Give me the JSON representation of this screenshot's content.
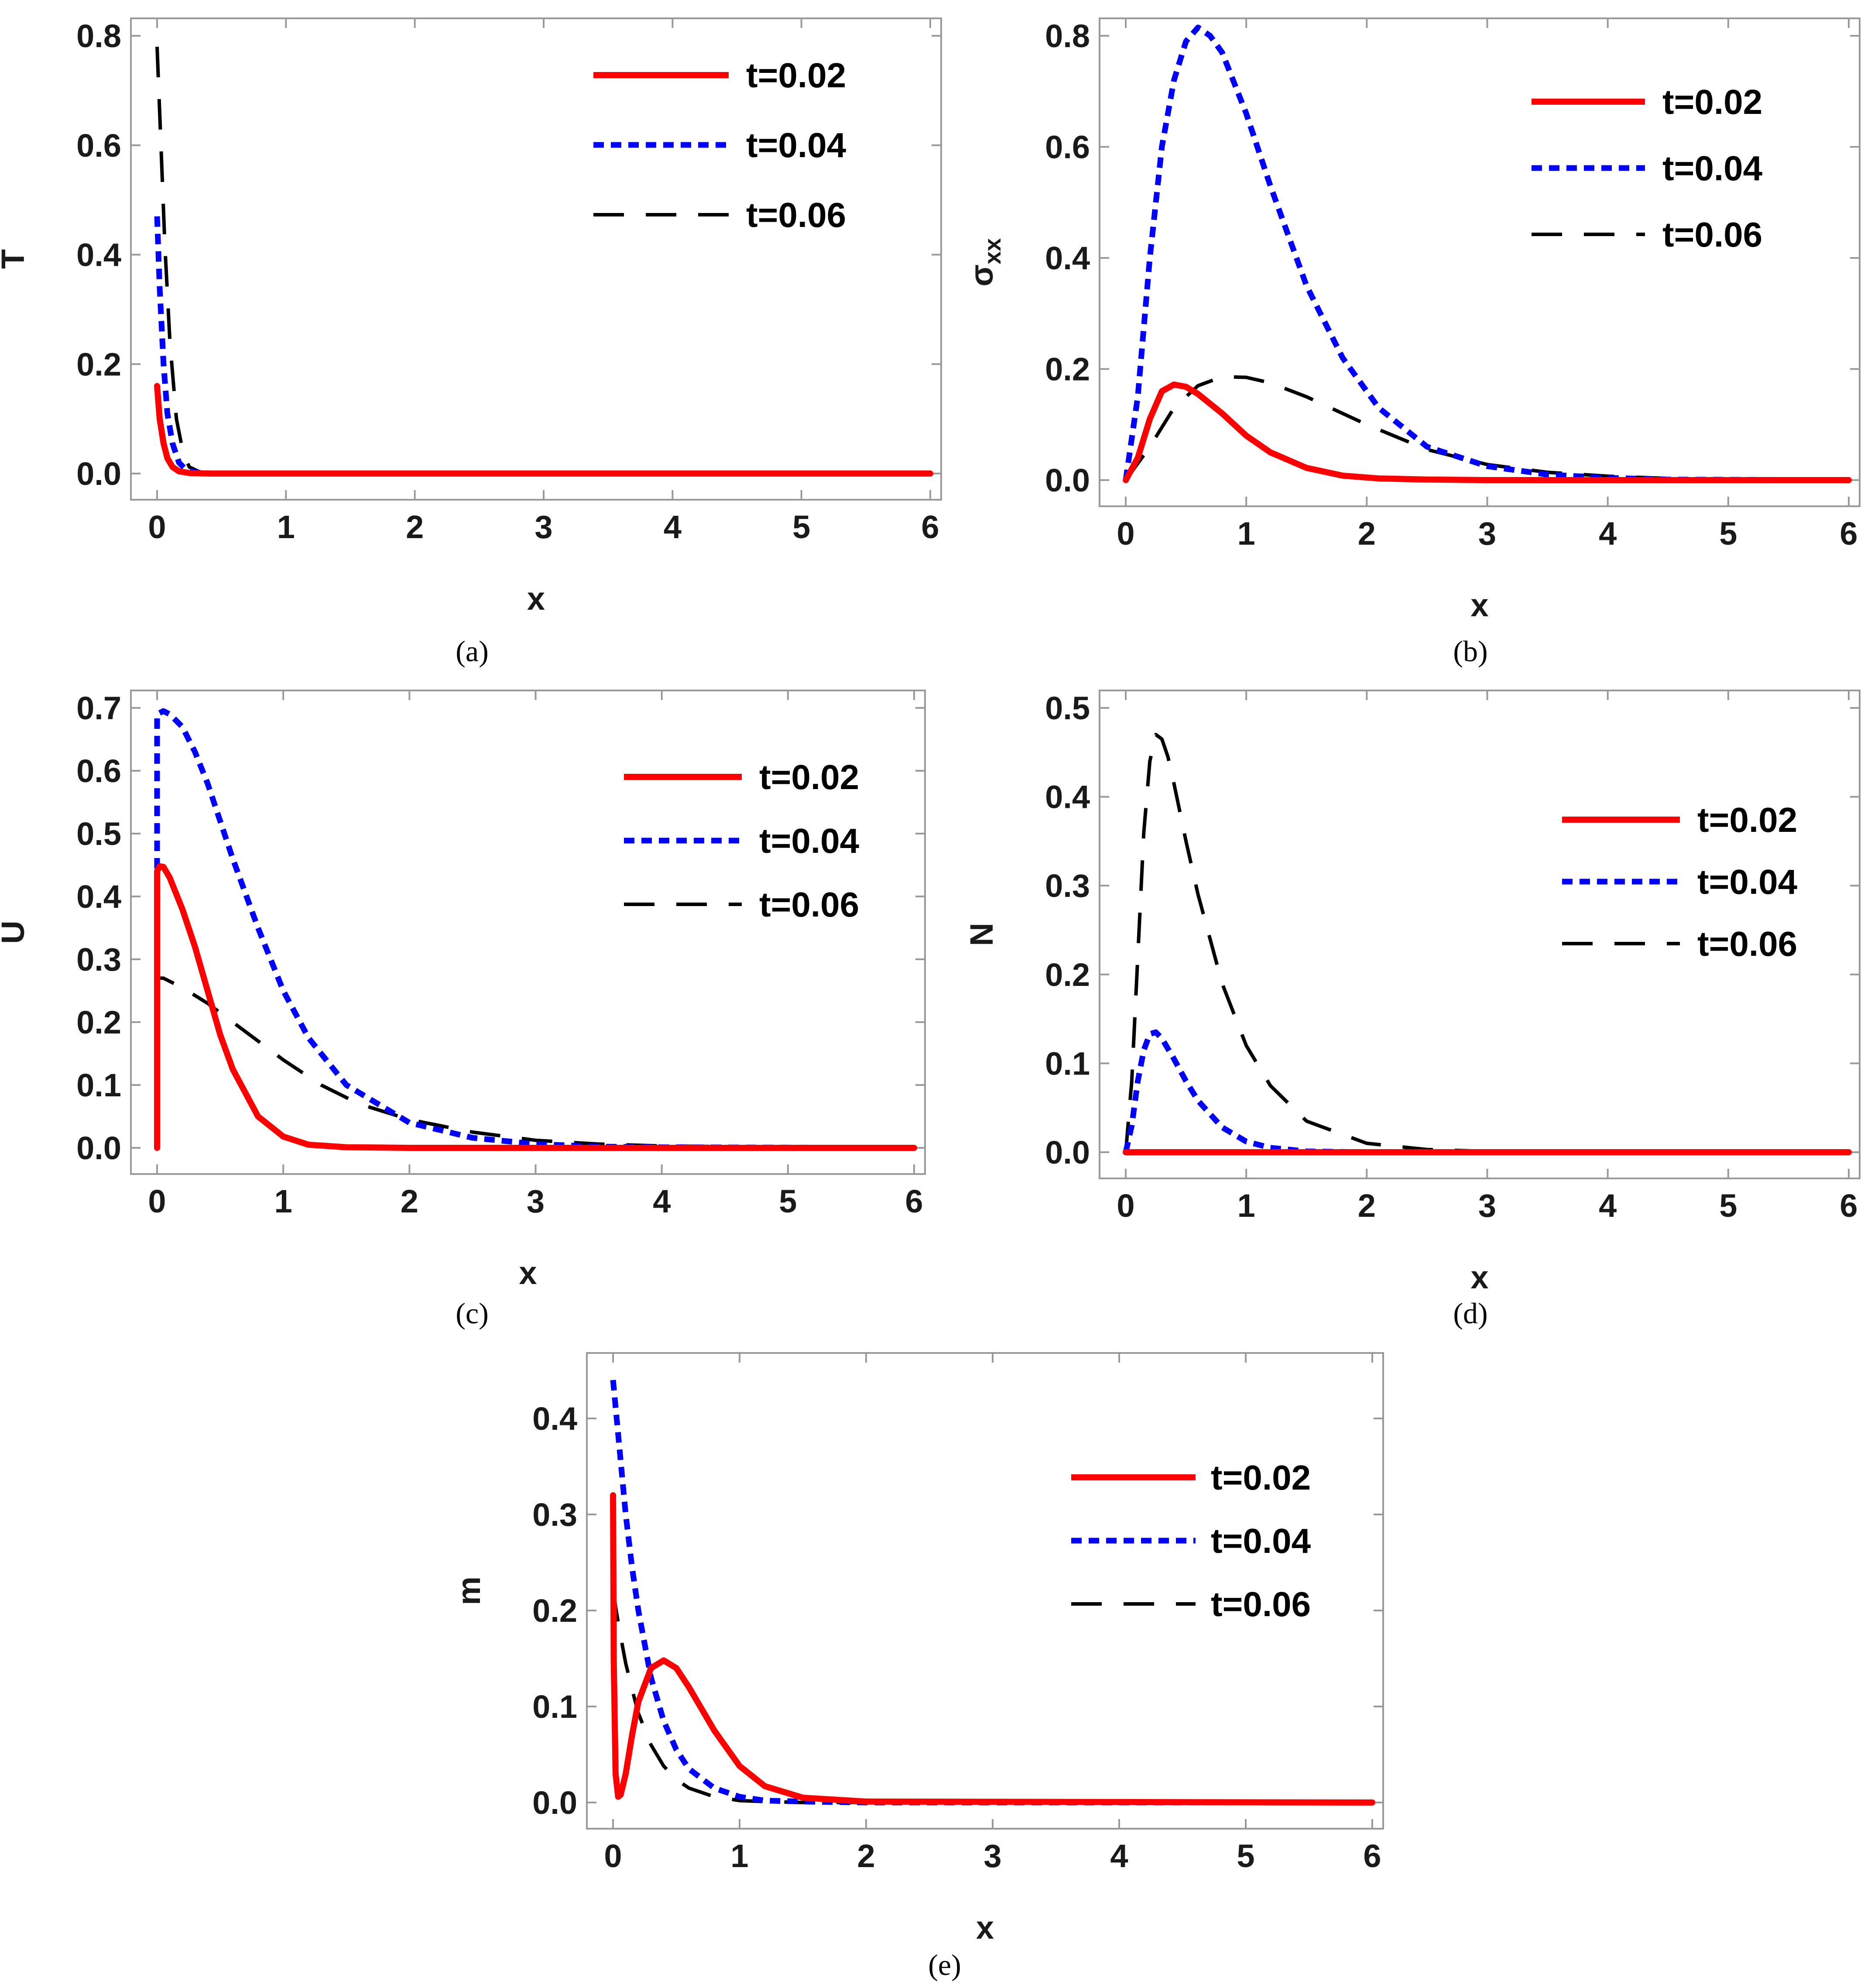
{
  "style": {
    "colors": {
      "t002": "#ff0000",
      "t004": "#0000ff",
      "t006": "#000000",
      "frame": "#9a9a9a"
    }
  },
  "chart_data": [
    {
      "id": "a",
      "type": "line",
      "caption": "(a)",
      "xlabel": "x",
      "ylabel": "T",
      "ylabel_sub": "",
      "xlim": [
        0,
        6
      ],
      "ylim": [
        0,
        0.8
      ],
      "xticks": [
        0,
        1,
        2,
        3,
        4,
        5,
        6
      ],
      "xtick_labels": [
        "0",
        "1",
        "2",
        "3",
        "4",
        "5",
        "6"
      ],
      "yticks": [
        0,
        0.2,
        0.4,
        0.6,
        0.8
      ],
      "ytick_labels": [
        "0.0",
        "0.2",
        "0.4",
        "0.6",
        "0.8"
      ],
      "legend": [
        "t=0.02",
        "t=0.04",
        "t=0.06"
      ],
      "series": [
        {
          "name": "t=0.02",
          "x": [
            0,
            0.02,
            0.05,
            0.08,
            0.12,
            0.17,
            0.25,
            0.4,
            6
          ],
          "y": [
            0.16,
            0.1,
            0.055,
            0.028,
            0.012,
            0.004,
            0.001,
            0,
            0
          ]
        },
        {
          "name": "t=0.04",
          "x": [
            0,
            0.02,
            0.05,
            0.08,
            0.12,
            0.17,
            0.22,
            0.3,
            0.45,
            6
          ],
          "y": [
            0.47,
            0.34,
            0.2,
            0.11,
            0.055,
            0.02,
            0.008,
            0.002,
            0,
            0
          ]
        },
        {
          "name": "t=0.06",
          "x": [
            0,
            0.03,
            0.06,
            0.1,
            0.15,
            0.2,
            0.25,
            0.33,
            0.45,
            6
          ],
          "y": [
            0.78,
            0.6,
            0.42,
            0.24,
            0.1,
            0.04,
            0.012,
            0.003,
            0,
            0
          ]
        }
      ]
    },
    {
      "id": "b",
      "type": "line",
      "caption": "(b)",
      "xlabel": "x",
      "ylabel": "σ",
      "ylabel_sub": "xx",
      "xlim": [
        0,
        6
      ],
      "ylim": [
        0,
        0.8
      ],
      "xticks": [
        0,
        1,
        2,
        3,
        4,
        5,
        6
      ],
      "xtick_labels": [
        "0",
        "1",
        "2",
        "3",
        "4",
        "5",
        "6"
      ],
      "yticks": [
        0,
        0.2,
        0.4,
        0.6,
        0.8
      ],
      "ytick_labels": [
        "0.0",
        "0.2",
        "0.4",
        "0.6",
        "0.8"
      ],
      "legend": [
        "t=0.02",
        "t=0.04",
        "t=0.06"
      ],
      "series": [
        {
          "name": "t=0.02",
          "x": [
            0,
            0.1,
            0.2,
            0.3,
            0.4,
            0.5,
            0.6,
            0.8,
            1.0,
            1.2,
            1.5,
            1.8,
            2.1,
            2.5,
            3,
            6
          ],
          "y": [
            0,
            0.04,
            0.11,
            0.16,
            0.172,
            0.168,
            0.155,
            0.12,
            0.08,
            0.05,
            0.022,
            0.008,
            0.003,
            0.001,
            0,
            0
          ]
        },
        {
          "name": "t=0.04",
          "x": [
            0,
            0.1,
            0.2,
            0.3,
            0.4,
            0.5,
            0.6,
            0.7,
            0.8,
            1.0,
            1.2,
            1.5,
            1.8,
            2.1,
            2.5,
            3,
            3.5,
            4,
            4.5,
            6
          ],
          "y": [
            0,
            0.15,
            0.4,
            0.6,
            0.72,
            0.79,
            0.815,
            0.8,
            0.77,
            0.66,
            0.53,
            0.35,
            0.22,
            0.13,
            0.06,
            0.025,
            0.01,
            0.004,
            0.001,
            0
          ]
        },
        {
          "name": "t=0.06",
          "x": [
            0,
            0.2,
            0.4,
            0.6,
            0.8,
            1.0,
            1.2,
            1.5,
            2.0,
            2.5,
            3.0,
            3.5,
            4.0,
            4.5,
            5,
            6
          ],
          "y": [
            0,
            0.06,
            0.13,
            0.17,
            0.186,
            0.185,
            0.175,
            0.15,
            0.1,
            0.055,
            0.028,
            0.014,
            0.007,
            0.003,
            0.001,
            0
          ]
        }
      ]
    },
    {
      "id": "c",
      "type": "line",
      "caption": "(c)",
      "xlabel": "x",
      "ylabel": "U",
      "ylabel_sub": "",
      "xlim": [
        0,
        6
      ],
      "ylim": [
        0,
        0.7
      ],
      "xticks": [
        0,
        1,
        2,
        3,
        4,
        5,
        6
      ],
      "xtick_labels": [
        "0",
        "1",
        "2",
        "3",
        "4",
        "5",
        "6"
      ],
      "yticks": [
        0,
        0.1,
        0.2,
        0.3,
        0.4,
        0.5,
        0.6,
        0.7
      ],
      "ytick_labels": [
        "0.0",
        "0.1",
        "0.2",
        "0.3",
        "0.4",
        "0.5",
        "0.6",
        "0.7"
      ],
      "legend": [
        "t=0.02",
        "t=0.04",
        "t=0.06"
      ],
      "series": [
        {
          "name": "t=0.02",
          "x": [
            0,
            0,
            0.02,
            0.05,
            0.1,
            0.2,
            0.3,
            0.4,
            0.5,
            0.6,
            0.8,
            1.0,
            1.2,
            1.5,
            2,
            6
          ],
          "y": [
            0,
            0.44,
            0.448,
            0.447,
            0.43,
            0.38,
            0.32,
            0.25,
            0.18,
            0.125,
            0.05,
            0.018,
            0.005,
            0.001,
            0,
            0
          ]
        },
        {
          "name": "t=0.04",
          "x": [
            0,
            0,
            0.05,
            0.1,
            0.2,
            0.3,
            0.4,
            0.5,
            0.6,
            0.8,
            1.0,
            1.2,
            1.5,
            2.0,
            2.5,
            3.0,
            3.5,
            4,
            6
          ],
          "y": [
            0,
            0.69,
            0.695,
            0.69,
            0.67,
            0.63,
            0.58,
            0.52,
            0.46,
            0.35,
            0.25,
            0.175,
            0.1,
            0.04,
            0.016,
            0.006,
            0.002,
            0.001,
            0
          ]
        },
        {
          "name": "t=0.06",
          "x": [
            0,
            0,
            0.05,
            0.1,
            0.2,
            0.4,
            0.6,
            0.8,
            1.0,
            1.3,
            1.6,
            2.0,
            2.5,
            3.0,
            3.5,
            4,
            5,
            6
          ],
          "y": [
            0,
            0.27,
            0.27,
            0.265,
            0.255,
            0.23,
            0.2,
            0.17,
            0.14,
            0.1,
            0.07,
            0.045,
            0.025,
            0.012,
            0.006,
            0.003,
            0.001,
            0
          ]
        }
      ]
    },
    {
      "id": "d",
      "type": "line",
      "caption": "(d)",
      "xlabel": "x",
      "ylabel": "N",
      "ylabel_sub": "",
      "xlim": [
        0,
        6
      ],
      "ylim": [
        0,
        0.5
      ],
      "xticks": [
        0,
        1,
        2,
        3,
        4,
        5,
        6
      ],
      "xtick_labels": [
        "0",
        "1",
        "2",
        "3",
        "4",
        "5",
        "6"
      ],
      "yticks": [
        0,
        0.1,
        0.2,
        0.3,
        0.4,
        0.5
      ],
      "ytick_labels": [
        "0.0",
        "0.1",
        "0.2",
        "0.3",
        "0.4",
        "0.5"
      ],
      "legend": [
        "t=0.02",
        "t=0.04",
        "t=0.06"
      ],
      "series": [
        {
          "name": "t=0.02",
          "x": [
            0,
            6
          ],
          "y": [
            0,
            0
          ]
        },
        {
          "name": "t=0.04",
          "x": [
            0,
            0.05,
            0.1,
            0.15,
            0.2,
            0.25,
            0.3,
            0.4,
            0.5,
            0.6,
            0.8,
            1.0,
            1.2,
            1.5,
            2,
            6
          ],
          "y": [
            0,
            0.03,
            0.08,
            0.115,
            0.133,
            0.135,
            0.128,
            0.105,
            0.08,
            0.058,
            0.028,
            0.012,
            0.005,
            0.001,
            0,
            0
          ]
        },
        {
          "name": "t=0.06",
          "x": [
            0,
            0.05,
            0.1,
            0.15,
            0.2,
            0.25,
            0.3,
            0.35,
            0.4,
            0.5,
            0.6,
            0.8,
            1.0,
            1.2,
            1.5,
            2.0,
            2.5,
            3,
            6
          ],
          "y": [
            0,
            0.08,
            0.22,
            0.36,
            0.44,
            0.47,
            0.465,
            0.445,
            0.415,
            0.35,
            0.29,
            0.19,
            0.12,
            0.075,
            0.035,
            0.01,
            0.003,
            0.001,
            0
          ]
        }
      ]
    },
    {
      "id": "e",
      "type": "line",
      "caption": "(e)",
      "xlabel": "x",
      "ylabel": "m",
      "ylabel_sub": "",
      "xlim": [
        0,
        6
      ],
      "ylim": [
        0,
        0.45
      ],
      "xticks": [
        0,
        1,
        2,
        3,
        4,
        5,
        6
      ],
      "xtick_labels": [
        "0",
        "1",
        "2",
        "3",
        "4",
        "5",
        "6"
      ],
      "yticks": [
        0,
        0.1,
        0.2,
        0.3,
        0.4
      ],
      "ytick_labels": [
        "0.0",
        "0.1",
        "0.2",
        "0.3",
        "0.4"
      ],
      "legend": [
        "t=0.02",
        "t=0.04",
        "t=0.06"
      ],
      "series": [
        {
          "name": "t=0.02",
          "x": [
            0,
            0.005,
            0.02,
            0.04,
            0.06,
            0.1,
            0.15,
            0.2,
            0.3,
            0.4,
            0.5,
            0.6,
            0.8,
            1.0,
            1.2,
            1.5,
            2,
            6
          ],
          "y": [
            0.32,
            0.15,
            0.03,
            0.006,
            0.008,
            0.03,
            0.07,
            0.105,
            0.14,
            0.148,
            0.14,
            0.12,
            0.075,
            0.038,
            0.017,
            0.005,
            0.001,
            0
          ]
        },
        {
          "name": "t=0.04",
          "x": [
            0,
            0.05,
            0.1,
            0.15,
            0.2,
            0.3,
            0.4,
            0.5,
            0.6,
            0.8,
            1.0,
            1.2,
            1.5,
            2,
            6
          ],
          "y": [
            0.44,
            0.37,
            0.3,
            0.245,
            0.2,
            0.13,
            0.085,
            0.055,
            0.035,
            0.015,
            0.006,
            0.002,
            0.001,
            0,
            0
          ]
        },
        {
          "name": "t=0.06",
          "x": [
            0,
            0.05,
            0.1,
            0.15,
            0.2,
            0.3,
            0.4,
            0.5,
            0.6,
            0.8,
            1.0,
            1.2,
            1.5,
            2,
            6
          ],
          "y": [
            0.22,
            0.18,
            0.145,
            0.118,
            0.093,
            0.06,
            0.038,
            0.024,
            0.015,
            0.006,
            0.002,
            0.001,
            0,
            0,
            0
          ]
        }
      ]
    }
  ]
}
